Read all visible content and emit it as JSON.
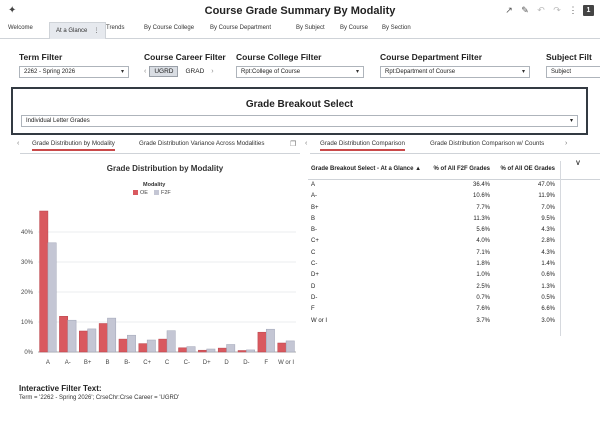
{
  "header": {
    "title": "Course Grade Summary By Modality",
    "pin_icon": "pin-icon",
    "badge": "1"
  },
  "tabs": [
    {
      "label": "Welcome"
    },
    {
      "label": "At a Glance"
    },
    {
      "label": "Trends"
    },
    {
      "label": "By Course College"
    },
    {
      "label": "By Course Department"
    },
    {
      "label": "By Subject"
    },
    {
      "label": "By Course"
    },
    {
      "label": "By Section"
    }
  ],
  "filters": {
    "term": {
      "label": "Term Filter",
      "value": "2262 - Spring 2026"
    },
    "career": {
      "label": "Course Career Filter",
      "options": [
        "UGRD",
        "GRAD"
      ],
      "selected": "UGRD"
    },
    "college": {
      "label": "Course College Filter",
      "value": "Rpt:College of Course"
    },
    "department": {
      "label": "Course Department Filter",
      "value": "Rpt:Department of Course"
    },
    "subject": {
      "label": "Subject Filt",
      "value": "Subject"
    }
  },
  "breakout": {
    "title": "Grade Breakout Select",
    "value": "Individual Letter Grades"
  },
  "subtabs_left": [
    "Grade Distribution by Modality",
    "Grade Distribution Variance Across Modalities"
  ],
  "subtabs_right": [
    "Grade Distribution Comparison",
    "Grade Distribution Comparison w/ Counts"
  ],
  "chart": {
    "title": "Grade Distribution by Modality",
    "legend_title": "Modality",
    "colors": {
      "OE": "#d9595f",
      "F2F": "#c4c6d4"
    }
  },
  "chart_data": {
    "type": "bar",
    "title": "Grade Distribution by Modality",
    "categories": [
      "A",
      "A-",
      "B+",
      "B",
      "B-",
      "C+",
      "C",
      "C-",
      "D+",
      "D",
      "D-",
      "F",
      "W or I"
    ],
    "series": [
      {
        "name": "OE",
        "values": [
          47.0,
          11.9,
          7.0,
          9.5,
          4.3,
          2.8,
          4.3,
          1.4,
          0.6,
          1.3,
          0.5,
          6.6,
          3.0
        ]
      },
      {
        "name": "F2F",
        "values": [
          36.4,
          10.6,
          7.7,
          11.3,
          5.6,
          4.0,
          7.1,
          1.8,
          1.0,
          2.5,
          0.7,
          7.6,
          3.7
        ]
      }
    ],
    "yticks": [
      "0%",
      "10%",
      "20%",
      "30%",
      "40%"
    ],
    "ylim": [
      0,
      50
    ],
    "grid": true,
    "legend": "top-center"
  },
  "table": {
    "col1_header": "Grade Breakout Select - At a Glance",
    "sort_icon": "sort-asc-icon",
    "col2_header": "% of All F2F Grades",
    "col3_header": "% of All OE Grades",
    "col4_header": "V",
    "rows": [
      {
        "grade": "A",
        "f2f": "36.4%",
        "oe": "47.0%"
      },
      {
        "grade": "A-",
        "f2f": "10.6%",
        "oe": "11.9%"
      },
      {
        "grade": "B+",
        "f2f": "7.7%",
        "oe": "7.0%"
      },
      {
        "grade": "B",
        "f2f": "11.3%",
        "oe": "9.5%"
      },
      {
        "grade": "B-",
        "f2f": "5.6%",
        "oe": "4.3%"
      },
      {
        "grade": "C+",
        "f2f": "4.0%",
        "oe": "2.8%"
      },
      {
        "grade": "C",
        "f2f": "7.1%",
        "oe": "4.3%"
      },
      {
        "grade": "C-",
        "f2f": "1.8%",
        "oe": "1.4%"
      },
      {
        "grade": "D+",
        "f2f": "1.0%",
        "oe": "0.6%"
      },
      {
        "grade": "D",
        "f2f": "2.5%",
        "oe": "1.3%"
      },
      {
        "grade": "D-",
        "f2f": "0.7%",
        "oe": "0.5%"
      },
      {
        "grade": "F",
        "f2f": "7.6%",
        "oe": "6.6%"
      },
      {
        "grade": "W or I",
        "f2f": "3.7%",
        "oe": "3.0%"
      }
    ]
  },
  "footer": {
    "title": "Interactive Filter Text:",
    "text": "Term = '2262 - Spring 2026'; CrseChr:Crse Career = 'UGRD'"
  }
}
